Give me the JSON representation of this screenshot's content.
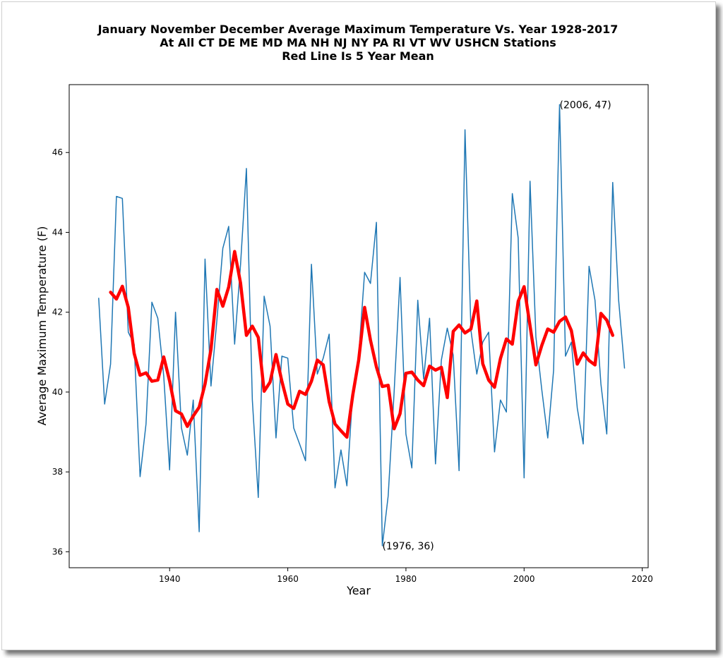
{
  "chart_data": {
    "type": "line",
    "title_lines": [
      "January November December Average Maximum Temperature Vs. Year 1928-2017",
      "At All CT DE ME MD MA NH NJ NY PA RI VT WV USHCN Stations",
      "Red Line Is 5 Year Mean"
    ],
    "xlabel": "Year",
    "ylabel": "Average Maximum Temperature (F)",
    "xlim": [
      1923,
      2021
    ],
    "ylim": [
      35.6,
      47.7
    ],
    "xticks": [
      1940,
      1960,
      1980,
      2000,
      2020
    ],
    "yticks": [
      36,
      38,
      40,
      42,
      44,
      46
    ],
    "grid": false,
    "legend": "none",
    "annotations": [
      {
        "text": "(2006, 47)",
        "x": 2006,
        "y": 47.2
      },
      {
        "text": "(1976, 36)",
        "x": 1976,
        "y": 36.15
      }
    ],
    "series": [
      {
        "color": "#1f77b4",
        "x": [
          1928,
          1929,
          1930,
          1931,
          1932,
          1933,
          1934,
          1935,
          1936,
          1937,
          1938,
          1939,
          1940,
          1941,
          1942,
          1943,
          1944,
          1945,
          1946,
          1947,
          1948,
          1949,
          1950,
          1951,
          1952,
          1953,
          1954,
          1955,
          1956,
          1957,
          1958,
          1959,
          1960,
          1961,
          1962,
          1963,
          1964,
          1965,
          1966,
          1967,
          1968,
          1969,
          1970,
          1971,
          1972,
          1973,
          1974,
          1975,
          1976,
          1977,
          1978,
          1979,
          1980,
          1981,
          1982,
          1983,
          1984,
          1985,
          1986,
          1987,
          1988,
          1989,
          1990,
          1991,
          1992,
          1993,
          1994,
          1995,
          1996,
          1997,
          1998,
          1999,
          2000,
          2001,
          2002,
          2003,
          2004,
          2005,
          2006,
          2007,
          2008,
          2009,
          2010,
          2011,
          2012,
          2013,
          2014,
          2015,
          2016,
          2017
        ],
        "y": [
          42.35,
          39.7,
          40.7,
          44.9,
          44.85,
          41.5,
          41.2,
          37.88,
          39.2,
          42.25,
          41.85,
          40.4,
          38.05,
          42.0,
          39.1,
          38.42,
          39.8,
          36.5,
          43.33,
          40.15,
          41.8,
          43.6,
          44.15,
          41.2,
          43.2,
          45.6,
          39.8,
          37.36,
          42.4,
          41.65,
          38.85,
          40.9,
          40.85,
          39.1,
          38.7,
          38.28,
          43.2,
          40.45,
          40.85,
          41.45,
          37.6,
          38.55,
          37.65,
          40.0,
          40.9,
          43.0,
          42.72,
          44.25,
          36.15,
          37.4,
          40.0,
          42.87,
          38.95,
          38.1,
          42.3,
          40.33,
          41.85,
          38.2,
          40.8,
          41.6,
          40.92,
          38.03,
          46.57,
          41.55,
          40.45,
          41.25,
          41.5,
          38.5,
          39.8,
          39.5,
          44.97,
          43.86,
          37.85,
          45.28,
          41.38,
          40.05,
          38.85,
          40.55,
          47.2,
          40.9,
          41.25,
          39.6,
          38.7,
          43.15,
          42.3,
          40.2,
          38.95,
          45.25,
          42.3,
          40.6
        ]
      },
      {
        "color": "#ff0000",
        "x": [
          1930,
          1931,
          1932,
          1933,
          1934,
          1935,
          1936,
          1937,
          1938,
          1939,
          1940,
          1941,
          1942,
          1943,
          1944,
          1945,
          1946,
          1947,
          1948,
          1949,
          1950,
          1951,
          1952,
          1953,
          1954,
          1955,
          1956,
          1957,
          1958,
          1959,
          1960,
          1961,
          1962,
          1963,
          1964,
          1965,
          1966,
          1967,
          1968,
          1969,
          1970,
          1971,
          1972,
          1973,
          1974,
          1975,
          1976,
          1977,
          1978,
          1979,
          1980,
          1981,
          1982,
          1983,
          1984,
          1985,
          1986,
          1987,
          1988,
          1989,
          1990,
          1991,
          1992,
          1993,
          1994,
          1995,
          1996,
          1997,
          1998,
          1999,
          2000,
          2001,
          2002,
          2003,
          2004,
          2005,
          2006,
          2007,
          2008,
          2009,
          2010,
          2011,
          2012,
          2013,
          2014,
          2015
        ],
        "y": [
          42.5,
          42.33,
          42.65,
          42.12,
          40.97,
          40.42,
          40.48,
          40.27,
          40.3,
          40.88,
          40.28,
          39.53,
          39.45,
          39.14,
          39.4,
          39.62,
          40.2,
          41.07,
          42.57,
          42.15,
          42.63,
          43.52,
          42.73,
          41.42,
          41.65,
          41.37,
          40.02,
          40.25,
          40.94,
          40.27,
          39.7,
          39.59,
          40.02,
          39.94,
          40.27,
          40.8,
          40.68,
          39.76,
          39.2,
          39.03,
          38.87,
          39.92,
          40.8,
          42.12,
          41.3,
          40.63,
          40.14,
          40.17,
          39.08,
          39.46,
          40.47,
          40.5,
          40.3,
          40.16,
          40.65,
          40.55,
          40.62,
          39.86,
          41.52,
          41.68,
          41.48,
          41.58,
          42.28,
          40.71,
          40.3,
          40.12,
          40.84,
          41.33,
          41.2,
          42.27,
          42.64,
          41.66,
          40.68,
          41.17,
          41.58,
          41.5,
          41.77,
          41.88,
          41.54,
          40.7,
          40.98,
          40.79,
          40.68,
          41.97,
          41.8,
          41.42
        ]
      }
    ]
  }
}
